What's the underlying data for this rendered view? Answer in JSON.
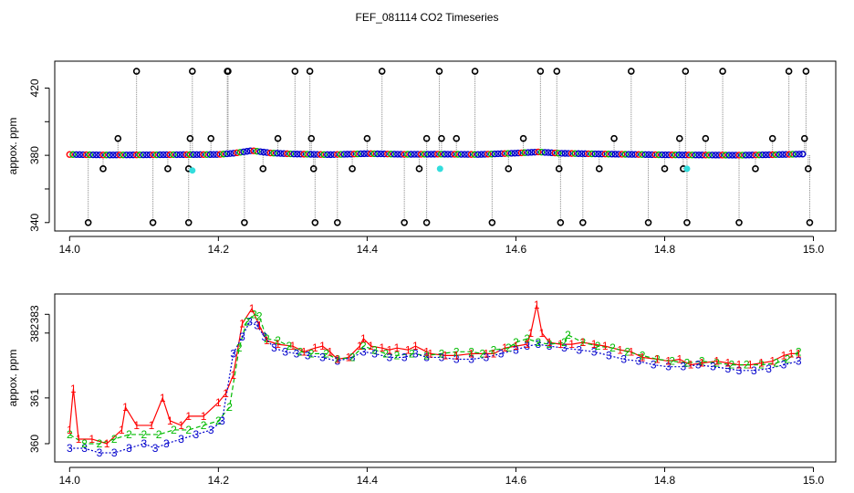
{
  "title": "FEF_081114  CO2 Timeseries",
  "colors": {
    "s1": "#ff0000",
    "s2": "#00bb00",
    "s3": "#0000cc",
    "black": "#000000",
    "cyan": "#33dddd",
    "drop": "#888888"
  },
  "chart_data": [
    {
      "type": "scatter",
      "title": "FEF_081114  CO2 Timeseries",
      "ylabel": "appox. ppm",
      "xlim": [
        13.98,
        15.03
      ],
      "ylim": [
        335,
        436
      ],
      "x_ticks": [
        14.0,
        14.2,
        14.4,
        14.6,
        14.8,
        15.0
      ],
      "y_ticks": [
        340,
        360,
        380,
        400,
        420
      ],
      "y_tick_labels": [
        "340",
        "",
        "380",
        "",
        "420"
      ],
      "baseline": [
        [
          14.0,
          380.5
        ],
        [
          14.05,
          380.2
        ],
        [
          14.1,
          380.3
        ],
        [
          14.15,
          380.4
        ],
        [
          14.2,
          380.5
        ],
        [
          14.22,
          381.2
        ],
        [
          14.245,
          382.8
        ],
        [
          14.27,
          381.4
        ],
        [
          14.3,
          380.8
        ],
        [
          14.35,
          380.4
        ],
        [
          14.4,
          381.0
        ],
        [
          14.45,
          380.6
        ],
        [
          14.5,
          380.7
        ],
        [
          14.55,
          380.5
        ],
        [
          14.6,
          381.3
        ],
        [
          14.63,
          382.0
        ],
        [
          14.66,
          381.2
        ],
        [
          14.7,
          380.9
        ],
        [
          14.75,
          380.6
        ],
        [
          14.8,
          380.3
        ],
        [
          14.85,
          380.2
        ],
        [
          14.9,
          380.1
        ],
        [
          14.95,
          380.4
        ],
        [
          14.99,
          380.8
        ]
      ],
      "outliers": [
        [
          14.025,
          340
        ],
        [
          14.045,
          372
        ],
        [
          14.065,
          390
        ],
        [
          14.09,
          430
        ],
        [
          14.112,
          340
        ],
        [
          14.132,
          372
        ],
        [
          14.16,
          340
        ],
        [
          14.16,
          372
        ],
        [
          14.162,
          390
        ],
        [
          14.165,
          430
        ],
        [
          14.19,
          390
        ],
        [
          14.212,
          430
        ],
        [
          14.213,
          430
        ],
        [
          14.235,
          340
        ],
        [
          14.26,
          372
        ],
        [
          14.28,
          390
        ],
        [
          14.303,
          430
        ],
        [
          14.323,
          430
        ],
        [
          14.325,
          390
        ],
        [
          14.328,
          372
        ],
        [
          14.33,
          340
        ],
        [
          14.36,
          340
        ],
        [
          14.38,
          372
        ],
        [
          14.4,
          390
        ],
        [
          14.42,
          430
        ],
        [
          14.45,
          340
        ],
        [
          14.47,
          372
        ],
        [
          14.48,
          390
        ],
        [
          14.48,
          340
        ],
        [
          14.497,
          430
        ],
        [
          14.5,
          390
        ],
        [
          14.52,
          390
        ],
        [
          14.545,
          430
        ],
        [
          14.568,
          340
        ],
        [
          14.59,
          372
        ],
        [
          14.61,
          390
        ],
        [
          14.633,
          430
        ],
        [
          14.655,
          430
        ],
        [
          14.658,
          372
        ],
        [
          14.66,
          340
        ],
        [
          14.69,
          340
        ],
        [
          14.712,
          372
        ],
        [
          14.732,
          390
        ],
        [
          14.755,
          430
        ],
        [
          14.778,
          340
        ],
        [
          14.8,
          372
        ],
        [
          14.82,
          390
        ],
        [
          14.825,
          372
        ],
        [
          14.828,
          430
        ],
        [
          14.83,
          340
        ],
        [
          14.855,
          390
        ],
        [
          14.878,
          430
        ],
        [
          14.9,
          340
        ],
        [
          14.922,
          372
        ],
        [
          14.945,
          390
        ],
        [
          14.967,
          430
        ],
        [
          14.988,
          390
        ],
        [
          14.99,
          430
        ],
        [
          14.993,
          372
        ],
        [
          14.995,
          340
        ]
      ],
      "cyan_points": [
        [
          14.165,
          371
        ],
        [
          14.498,
          372
        ],
        [
          14.83,
          372
        ]
      ]
    },
    {
      "type": "line",
      "ylabel": "appox. ppm",
      "xlim": [
        13.98,
        15.03
      ],
      "ylim": [
        359.7,
        383.6
      ],
      "x_ticks": [
        14.0,
        14.2,
        14.4,
        14.6,
        14.8,
        15.0
      ],
      "y_ticks": [
        360,
        361,
        382,
        383
      ],
      "series": [
        {
          "name": "1",
          "values": [
            [
              14.0,
              360.3
            ],
            [
              14.005,
              361.2
            ],
            [
              14.012,
              360.1
            ],
            [
              14.03,
              360.1
            ],
            [
              14.05,
              360.0
            ],
            [
              14.07,
              360.3
            ],
            [
              14.075,
              360.8
            ],
            [
              14.09,
              360.4
            ],
            [
              14.11,
              360.4
            ],
            [
              14.125,
              361.0
            ],
            [
              14.135,
              360.5
            ],
            [
              14.15,
              360.4
            ],
            [
              14.16,
              360.6
            ],
            [
              14.18,
              360.6
            ],
            [
              14.2,
              360.9
            ],
            [
              14.21,
              361.1
            ],
            [
              14.22,
              361.5
            ],
            [
              14.232,
              382.5
            ],
            [
              14.245,
              383.3
            ],
            [
              14.255,
              382.4
            ],
            [
              14.265,
              381.6
            ],
            [
              14.28,
              381.4
            ],
            [
              14.3,
              381.3
            ],
            [
              14.315,
              381.0
            ],
            [
              14.33,
              381.2
            ],
            [
              14.34,
              381.3
            ],
            [
              14.35,
              381.0
            ],
            [
              14.36,
              380.6
            ],
            [
              14.375,
              380.7
            ],
            [
              14.39,
              381.3
            ],
            [
              14.395,
              381.7
            ],
            [
              14.405,
              381.3
            ],
            [
              14.42,
              381.2
            ],
            [
              14.43,
              381.1
            ],
            [
              14.44,
              381.2
            ],
            [
              14.455,
              381.1
            ],
            [
              14.465,
              381.3
            ],
            [
              14.48,
              381.0
            ],
            [
              14.485,
              380.9
            ],
            [
              14.505,
              380.8
            ],
            [
              14.52,
              380.8
            ],
            [
              14.54,
              380.9
            ],
            [
              14.56,
              380.9
            ],
            [
              14.57,
              380.9
            ],
            [
              14.585,
              381.2
            ],
            [
              14.6,
              381.3
            ],
            [
              14.615,
              381.4
            ],
            [
              14.62,
              382.0
            ],
            [
              14.628,
              383.5
            ],
            [
              14.635,
              382.0
            ],
            [
              14.645,
              381.5
            ],
            [
              14.66,
              381.4
            ],
            [
              14.675,
              381.4
            ],
            [
              14.69,
              381.5
            ],
            [
              14.705,
              381.4
            ],
            [
              14.72,
              381.3
            ],
            [
              14.74,
              381.1
            ],
            [
              14.755,
              381.0
            ],
            [
              14.77,
              380.7
            ],
            [
              14.79,
              380.6
            ],
            [
              14.805,
              380.5
            ],
            [
              14.82,
              380.6
            ],
            [
              14.835,
              380.3
            ],
            [
              14.85,
              380.4
            ],
            [
              14.87,
              380.5
            ],
            [
              14.885,
              380.4
            ],
            [
              14.9,
              380.3
            ],
            [
              14.915,
              380.3
            ],
            [
              14.93,
              380.4
            ],
            [
              14.945,
              380.5
            ],
            [
              14.96,
              380.8
            ],
            [
              14.97,
              380.9
            ],
            [
              14.98,
              380.9
            ]
          ]
        },
        {
          "name": "2",
          "values": [
            [
              14.0,
              360.2
            ],
            [
              14.02,
              360.0
            ],
            [
              14.04,
              360.0
            ],
            [
              14.06,
              360.1
            ],
            [
              14.08,
              360.2
            ],
            [
              14.1,
              360.2
            ],
            [
              14.12,
              360.2
            ],
            [
              14.14,
              360.3
            ],
            [
              14.16,
              360.3
            ],
            [
              14.18,
              360.4
            ],
            [
              14.2,
              360.5
            ],
            [
              14.215,
              360.8
            ],
            [
              14.228,
              381.2
            ],
            [
              14.238,
              382.6
            ],
            [
              14.248,
              383.0
            ],
            [
              14.255,
              382.9
            ],
            [
              14.265,
              381.7
            ],
            [
              14.28,
              381.6
            ],
            [
              14.295,
              381.3
            ],
            [
              14.31,
              381.0
            ],
            [
              14.325,
              380.9
            ],
            [
              14.345,
              380.9
            ],
            [
              14.36,
              380.6
            ],
            [
              14.38,
              380.7
            ],
            [
              14.395,
              381.3
            ],
            [
              14.41,
              381.1
            ],
            [
              14.425,
              380.9
            ],
            [
              14.44,
              380.8
            ],
            [
              14.46,
              380.9
            ],
            [
              14.48,
              380.8
            ],
            [
              14.5,
              380.9
            ],
            [
              14.52,
              381.0
            ],
            [
              14.54,
              381.0
            ],
            [
              14.555,
              380.9
            ],
            [
              14.57,
              381.1
            ],
            [
              14.59,
              381.2
            ],
            [
              14.6,
              381.5
            ],
            [
              14.615,
              381.7
            ],
            [
              14.63,
              381.5
            ],
            [
              14.645,
              381.4
            ],
            [
              14.665,
              381.5
            ],
            [
              14.67,
              381.9
            ],
            [
              14.69,
              381.5
            ],
            [
              14.71,
              381.3
            ],
            [
              14.73,
              381.2
            ],
            [
              14.75,
              381.0
            ],
            [
              14.77,
              380.8
            ],
            [
              14.79,
              380.6
            ],
            [
              14.81,
              380.5
            ],
            [
              14.83,
              380.4
            ],
            [
              14.85,
              380.5
            ],
            [
              14.87,
              380.4
            ],
            [
              14.89,
              380.3
            ],
            [
              14.91,
              380.3
            ],
            [
              14.93,
              380.3
            ],
            [
              14.95,
              380.4
            ],
            [
              14.965,
              380.6
            ],
            [
              14.98,
              381.0
            ]
          ]
        },
        {
          "name": "3",
          "values": [
            [
              14.0,
              359.9
            ],
            [
              14.02,
              359.9
            ],
            [
              14.04,
              359.8
            ],
            [
              14.06,
              359.8
            ],
            [
              14.08,
              359.9
            ],
            [
              14.1,
              360.0
            ],
            [
              14.115,
              359.9
            ],
            [
              14.13,
              360.0
            ],
            [
              14.15,
              360.1
            ],
            [
              14.17,
              360.2
            ],
            [
              14.19,
              360.3
            ],
            [
              14.205,
              360.5
            ],
            [
              14.22,
              380.9
            ],
            [
              14.232,
              381.8
            ],
            [
              14.242,
              382.6
            ],
            [
              14.252,
              382.4
            ],
            [
              14.262,
              381.8
            ],
            [
              14.275,
              381.2
            ],
            [
              14.29,
              381.0
            ],
            [
              14.305,
              380.9
            ],
            [
              14.32,
              380.8
            ],
            [
              14.34,
              380.7
            ],
            [
              14.36,
              380.5
            ],
            [
              14.38,
              380.7
            ],
            [
              14.395,
              381.0
            ],
            [
              14.41,
              380.9
            ],
            [
              14.43,
              380.7
            ],
            [
              14.45,
              380.7
            ],
            [
              14.465,
              380.9
            ],
            [
              14.48,
              380.7
            ],
            [
              14.5,
              380.7
            ],
            [
              14.52,
              380.6
            ],
            [
              14.54,
              380.6
            ],
            [
              14.56,
              380.7
            ],
            [
              14.58,
              380.9
            ],
            [
              14.6,
              381.1
            ],
            [
              14.615,
              381.3
            ],
            [
              14.63,
              381.4
            ],
            [
              14.645,
              381.3
            ],
            [
              14.665,
              381.2
            ],
            [
              14.685,
              381.1
            ],
            [
              14.705,
              381.0
            ],
            [
              14.725,
              380.8
            ],
            [
              14.745,
              380.6
            ],
            [
              14.765,
              380.5
            ],
            [
              14.785,
              380.3
            ],
            [
              14.805,
              380.2
            ],
            [
              14.825,
              380.2
            ],
            [
              14.845,
              380.3
            ],
            [
              14.865,
              380.2
            ],
            [
              14.885,
              380.1
            ],
            [
              14.9,
              380.0
            ],
            [
              14.92,
              380.0
            ],
            [
              14.94,
              380.1
            ],
            [
              14.96,
              380.3
            ],
            [
              14.98,
              380.5
            ]
          ]
        }
      ]
    }
  ]
}
